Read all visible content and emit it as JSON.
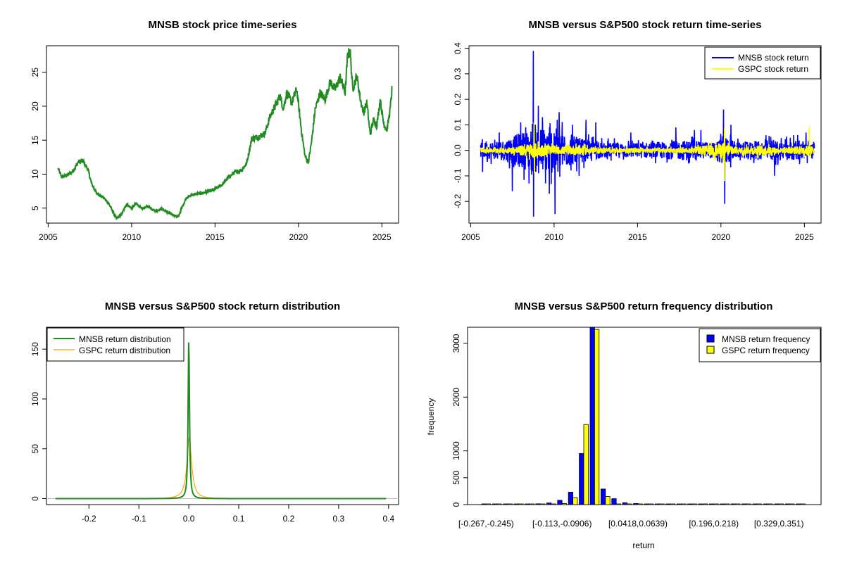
{
  "colors": {
    "green": "#228B22",
    "blue": "#0000FF",
    "yellow": "#FFFF00",
    "orange": "#FFA500",
    "gray": "#BEBEBE"
  },
  "chart_data": [
    {
      "type": "line",
      "title": "MNSB stock price time-series",
      "xlabel": "",
      "ylabel": "",
      "xlim": [
        2004.9,
        2026.0
      ],
      "ylim": [
        2.8,
        28.9
      ],
      "x_ticks": [
        "2005",
        "2010",
        "2015",
        "2020",
        "2025"
      ],
      "y_ticks": [
        "5",
        "10",
        "15",
        "20",
        "25"
      ],
      "series": [
        {
          "name": "MNSB stock price",
          "color": "#228B22",
          "points": [
            [
              2005.6,
              10.8
            ],
            [
              2005.8,
              9.6
            ],
            [
              2006.2,
              9.9
            ],
            [
              2006.5,
              10.5
            ],
            [
              2006.8,
              11.8
            ],
            [
              2007.1,
              11.9
            ],
            [
              2007.4,
              10.6
            ],
            [
              2007.6,
              8.6
            ],
            [
              2007.9,
              7.2
            ],
            [
              2008.3,
              6.6
            ],
            [
              2008.6,
              5.8
            ],
            [
              2008.9,
              4.4
            ],
            [
              2009.1,
              3.4
            ],
            [
              2009.4,
              4.1
            ],
            [
              2009.7,
              5.6
            ],
            [
              2010.0,
              5.0
            ],
            [
              2010.3,
              5.7
            ],
            [
              2010.6,
              4.9
            ],
            [
              2011.0,
              5.3
            ],
            [
              2011.4,
              4.6
            ],
            [
              2011.8,
              4.9
            ],
            [
              2012.2,
              4.3
            ],
            [
              2012.5,
              4.0
            ],
            [
              2012.8,
              3.7
            ],
            [
              2013.0,
              5.0
            ],
            [
              2013.3,
              6.6
            ],
            [
              2013.7,
              7.0
            ],
            [
              2014.2,
              7.2
            ],
            [
              2014.7,
              7.5
            ],
            [
              2015.0,
              7.8
            ],
            [
              2015.4,
              8.4
            ],
            [
              2015.8,
              9.5
            ],
            [
              2016.2,
              10.3
            ],
            [
              2016.6,
              10.6
            ],
            [
              2016.9,
              11.6
            ],
            [
              2017.2,
              15.2
            ],
            [
              2017.6,
              15.5
            ],
            [
              2018.0,
              16.0
            ],
            [
              2018.3,
              18.5
            ],
            [
              2018.6,
              20.0
            ],
            [
              2018.9,
              21.5
            ],
            [
              2019.1,
              19.6
            ],
            [
              2019.3,
              22.0
            ],
            [
              2019.6,
              20.5
            ],
            [
              2019.9,
              22.5
            ],
            [
              2020.2,
              16.0
            ],
            [
              2020.4,
              12.6
            ],
            [
              2020.6,
              11.8
            ],
            [
              2020.8,
              15.0
            ],
            [
              2021.0,
              19.5
            ],
            [
              2021.3,
              22.0
            ],
            [
              2021.6,
              21.0
            ],
            [
              2021.9,
              23.6
            ],
            [
              2022.2,
              22.5
            ],
            [
              2022.5,
              24.3
            ],
            [
              2022.8,
              22.0
            ],
            [
              2022.95,
              27.6
            ],
            [
              2023.1,
              28.0
            ],
            [
              2023.25,
              22.5
            ],
            [
              2023.5,
              24.5
            ],
            [
              2023.7,
              21.2
            ],
            [
              2023.9,
              19.0
            ],
            [
              2024.1,
              20.5
            ],
            [
              2024.3,
              15.8
            ],
            [
              2024.5,
              18.0
            ],
            [
              2024.7,
              17.2
            ],
            [
              2024.9,
              21.0
            ],
            [
              2025.1,
              17.5
            ],
            [
              2025.3,
              16.5
            ],
            [
              2025.5,
              19.5
            ],
            [
              2025.6,
              22.4
            ]
          ]
        }
      ]
    },
    {
      "type": "line",
      "title": "MNSB versus S&P500 stock return time-series",
      "xlabel": "",
      "ylabel": "",
      "xlim": [
        2004.9,
        2026.0
      ],
      "ylim": [
        -0.285,
        0.41
      ],
      "x_ticks": [
        "2005",
        "2010",
        "2015",
        "2020",
        "2025"
      ],
      "y_ticks": [
        "-0.2",
        "-0.1",
        "0.0",
        "0.1",
        "0.2",
        "0.3",
        "0.4"
      ],
      "legend": {
        "position": "top-right",
        "entries": [
          "MNSB stock return",
          "GSPC stock return"
        ]
      },
      "series": [
        {
          "name": "MNSB stock return",
          "color": "#0000FF",
          "volatility": [
            [
              2005.6,
              0.03
            ],
            [
              2007.0,
              0.04
            ],
            [
              2008.0,
              0.07
            ],
            [
              2009.0,
              0.09
            ],
            [
              2010.0,
              0.09
            ],
            [
              2011.0,
              0.06
            ],
            [
              2012.0,
              0.04
            ],
            [
              2013.0,
              0.03
            ],
            [
              2015.0,
              0.03
            ],
            [
              2017.0,
              0.035
            ],
            [
              2018.0,
              0.04
            ],
            [
              2019.5,
              0.03
            ],
            [
              2020.2,
              0.06
            ],
            [
              2021.0,
              0.03
            ],
            [
              2023.0,
              0.04
            ],
            [
              2025.6,
              0.035
            ]
          ],
          "spikes": [
            [
              2005.7,
              -0.085
            ],
            [
              2006.7,
              0.07
            ],
            [
              2007.5,
              -0.16
            ],
            [
              2008.0,
              0.11
            ],
            [
              2008.5,
              -0.13
            ],
            [
              2008.75,
              0.39
            ],
            [
              2008.77,
              -0.26
            ],
            [
              2009.05,
              0.175
            ],
            [
              2009.3,
              0.13
            ],
            [
              2009.7,
              -0.17
            ],
            [
              2010.05,
              -0.25
            ],
            [
              2010.3,
              0.15
            ],
            [
              2011.1,
              0.1
            ],
            [
              2011.5,
              -0.1
            ],
            [
              2011.9,
              0.12
            ],
            [
              2012.5,
              0.11
            ],
            [
              2014.6,
              0.07
            ],
            [
              2017.3,
              0.09
            ],
            [
              2018.4,
              0.08
            ],
            [
              2018.8,
              0.08
            ],
            [
              2020.15,
              0.16
            ],
            [
              2020.22,
              -0.21
            ],
            [
              2020.6,
              0.1
            ],
            [
              2023.2,
              -0.1
            ],
            [
              2024.6,
              0.06
            ],
            [
              2025.1,
              0.07
            ]
          ]
        },
        {
          "name": "GSPC stock return",
          "color": "#FFFF00",
          "volatility": [
            [
              2005.6,
              0.008
            ],
            [
              2007.5,
              0.012
            ],
            [
              2008.7,
              0.03
            ],
            [
              2009.2,
              0.025
            ],
            [
              2010.0,
              0.014
            ],
            [
              2011.6,
              0.02
            ],
            [
              2012.5,
              0.01
            ],
            [
              2016.0,
              0.009
            ],
            [
              2018.0,
              0.009
            ],
            [
              2020.2,
              0.03
            ],
            [
              2021.0,
              0.012
            ],
            [
              2022.5,
              0.02
            ],
            [
              2023.5,
              0.01
            ],
            [
              2025.3,
              0.02
            ],
            [
              2025.6,
              0.012
            ]
          ],
          "spikes": [
            [
              2008.8,
              0.11
            ],
            [
              2008.82,
              -0.09
            ],
            [
              2020.2,
              0.09
            ],
            [
              2020.21,
              -0.12
            ],
            [
              2025.3,
              0.095
            ]
          ]
        }
      ]
    },
    {
      "type": "line",
      "title": "MNSB versus S&P500 stock return distribution",
      "xlabel": "",
      "ylabel": "",
      "xlim": [
        -0.285,
        0.42
      ],
      "ylim": [
        -6,
        172
      ],
      "x_ticks": [
        "-0.2",
        "-0.1",
        "0.0",
        "0.1",
        "0.2",
        "0.3",
        "0.4"
      ],
      "y_ticks": [
        "0",
        "50",
        "100",
        "150"
      ],
      "legend": {
        "position": "top-left",
        "entries": [
          "MNSB return distribution",
          "GSPC return distribution"
        ]
      },
      "series": [
        {
          "name": "MNSB return distribution",
          "color": "#228B22",
          "peak": 163,
          "center": 0.0,
          "support": [
            -0.267,
            0.395
          ]
        },
        {
          "name": "GSPC return distribution",
          "color": "#FFA500",
          "peak": 61,
          "center": 0.001,
          "support": [
            -0.13,
            0.12
          ]
        }
      ]
    },
    {
      "type": "bar",
      "title": "MNSB versus S&P500 return frequency distribution",
      "xlabel": "return",
      "ylabel": "frequency",
      "ylim": [
        0,
        3300
      ],
      "y_ticks": [
        "0",
        "500",
        "1000",
        "2000",
        "3000"
      ],
      "x_tick_labels": [
        "[-0.267,-0.245)",
        "[-0.113,-0.0906)",
        "[0.0418,0.0639)",
        "[0.196,0.218)",
        "[0.329,0.351)"
      ],
      "legend": {
        "position": "top-right",
        "entries": [
          "MNSB return frequency",
          "GSPC return frequency"
        ]
      },
      "series": [
        {
          "name": "MNSB return frequency",
          "color": "#0000FF",
          "values": [
            1,
            1,
            2,
            3,
            8,
            15,
            30,
            80,
            230,
            950,
            3300,
            290,
            110,
            35,
            20,
            12,
            6,
            4,
            3,
            2,
            1,
            1,
            1,
            1,
            1,
            1,
            1,
            1,
            1,
            1
          ]
        },
        {
          "name": "GSPC return frequency",
          "color": "#FFFF00",
          "values": [
            0,
            0,
            0,
            0,
            0,
            1,
            2,
            20,
            130,
            1490,
            3260,
            150,
            10,
            2,
            1,
            0,
            0,
            0,
            0,
            0,
            0,
            0,
            0,
            0,
            0,
            0,
            0,
            0,
            0,
            0
          ]
        }
      ]
    }
  ]
}
